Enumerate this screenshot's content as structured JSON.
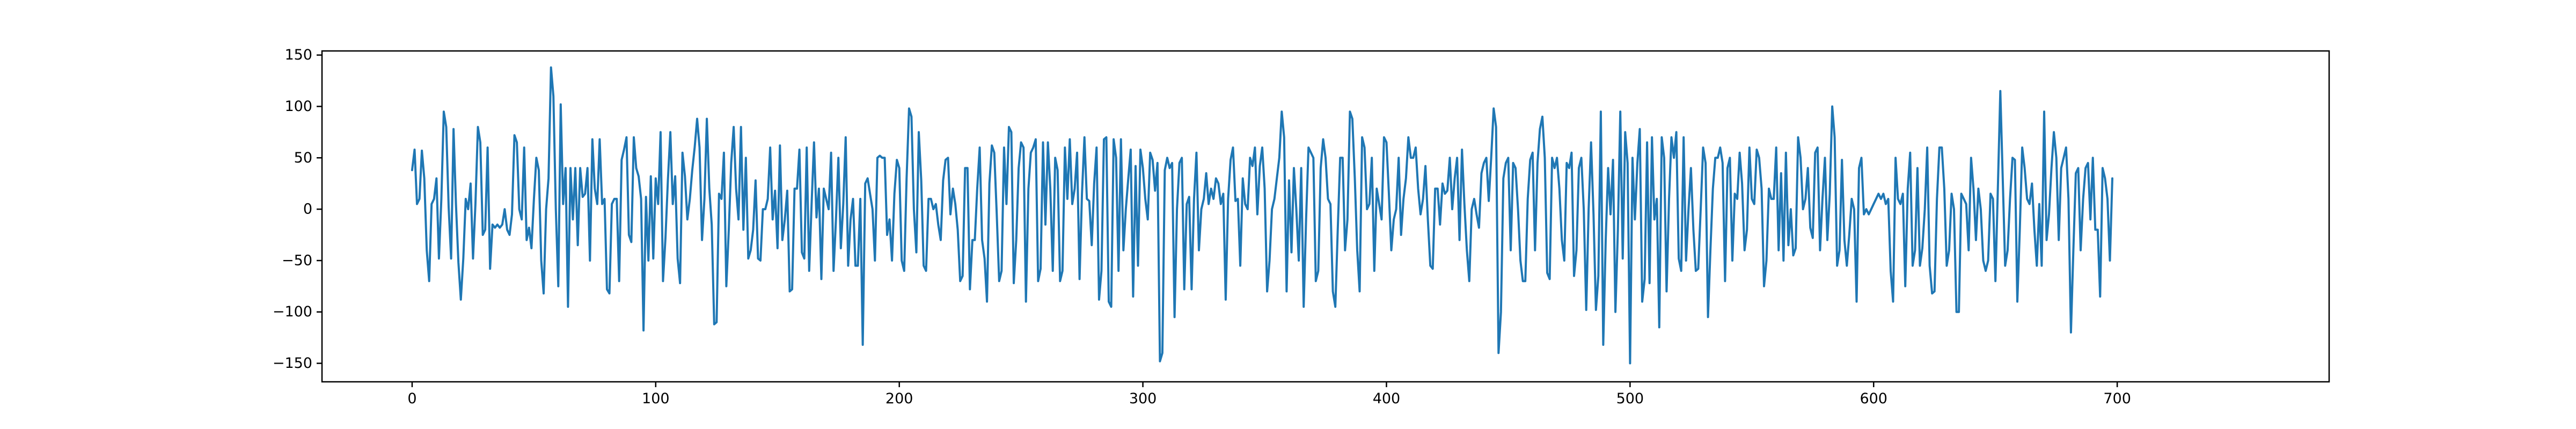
{
  "chart_data": {
    "type": "line",
    "title": "",
    "xlabel": "",
    "ylabel": "",
    "xlim": [
      -37,
      787
    ],
    "ylim": [
      -168,
      154
    ],
    "x_ticks": [
      0,
      100,
      200,
      300,
      400,
      500,
      600,
      700
    ],
    "y_ticks": [
      -150,
      -100,
      -50,
      0,
      50,
      100,
      150
    ],
    "x_tick_labels": [
      "0",
      "100",
      "200",
      "300",
      "400",
      "500",
      "600",
      "700"
    ],
    "y_tick_labels": [
      "−150",
      "−100",
      "−50",
      "0",
      "50",
      "100",
      "150"
    ],
    "grid": false,
    "legend": "none",
    "series": [
      {
        "color": "#1f77b4",
        "x_start": 0,
        "x_step": 1,
        "values": [
          38,
          58,
          5,
          10,
          57,
          30,
          -40,
          -70,
          5,
          10,
          30,
          -48,
          10,
          95,
          80,
          2,
          -48,
          78,
          5,
          -52,
          -88,
          -48,
          10,
          0,
          25,
          -48,
          5,
          80,
          65,
          -25,
          -20,
          60,
          -58,
          -15,
          -18,
          -15,
          -18,
          -15,
          0,
          -20,
          -25,
          -5,
          72,
          65,
          0,
          -10,
          60,
          -30,
          -18,
          -38,
          10,
          50,
          38,
          -50,
          -82,
          0,
          30,
          138,
          110,
          0,
          -75,
          102,
          5,
          40,
          -95,
          40,
          -10,
          40,
          -35,
          40,
          12,
          15,
          40,
          -50,
          68,
          20,
          5,
          68,
          5,
          10,
          -78,
          -82,
          5,
          10,
          10,
          -70,
          48,
          58,
          70,
          -25,
          -32,
          70,
          40,
          32,
          10,
          -118,
          12,
          -50,
          32,
          -48,
          30,
          5,
          75,
          -70,
          -28,
          28,
          75,
          5,
          32,
          -48,
          -72,
          55,
          32,
          -10,
          10,
          38,
          60,
          88,
          60,
          -30,
          10,
          88,
          20,
          -15,
          -112,
          -110,
          15,
          10,
          55,
          -75,
          -20,
          45,
          80,
          20,
          -10,
          80,
          -20,
          50,
          -48,
          -40,
          -20,
          28,
          -48,
          -50,
          0,
          0,
          10,
          60,
          -10,
          18,
          -38,
          62,
          -30,
          -10,
          18,
          -80,
          -78,
          20,
          20,
          58,
          -42,
          -48,
          60,
          -60,
          5,
          65,
          -8,
          20,
          -68,
          20,
          10,
          0,
          55,
          -60,
          -10,
          50,
          -38,
          5,
          70,
          -55,
          -10,
          10,
          -55,
          -55,
          10,
          -132,
          25,
          30,
          15,
          0,
          -50,
          50,
          52,
          50,
          50,
          -25,
          -10,
          -50,
          15,
          48,
          40,
          -50,
          -60,
          30,
          98,
          90,
          0,
          -42,
          75,
          28,
          -55,
          -60,
          10,
          10,
          0,
          5,
          -15,
          -30,
          28,
          48,
          50,
          -5,
          20,
          5,
          -20,
          -70,
          -65,
          40,
          40,
          -78,
          -30,
          -30,
          20,
          60,
          -30,
          -48,
          -90,
          25,
          62,
          55,
          -5,
          -70,
          -60,
          60,
          5,
          80,
          75,
          -72,
          -30,
          40,
          65,
          60,
          -90,
          20,
          55,
          60,
          68,
          -70,
          -58,
          65,
          -15,
          65,
          20,
          -60,
          50,
          38,
          -70,
          -60,
          60,
          10,
          68,
          5,
          20,
          55,
          -68,
          15,
          70,
          10,
          8,
          -35,
          25,
          60,
          -88,
          -60,
          68,
          70,
          -90,
          -95,
          68,
          50,
          -60,
          68,
          -40,
          0,
          30,
          58,
          -85,
          42,
          -55,
          58,
          40,
          10,
          -10,
          55,
          48,
          18,
          45,
          -148,
          -140,
          38,
          50,
          40,
          45,
          -105,
          0,
          45,
          50,
          -78,
          5,
          12,
          -78,
          10,
          55,
          -40,
          0,
          10,
          35,
          5,
          20,
          10,
          30,
          25,
          5,
          15,
          -88,
          10,
          48,
          60,
          8,
          10,
          -55,
          30,
          5,
          0,
          50,
          42,
          60,
          -5,
          42,
          60,
          20,
          -80,
          -50,
          0,
          10,
          30,
          50,
          95,
          70,
          -80,
          28,
          -42,
          40,
          0,
          -50,
          40,
          -95,
          -10,
          60,
          55,
          50,
          -70,
          -60,
          40,
          68,
          50,
          10,
          5,
          -80,
          -95,
          -20,
          50,
          50,
          -40,
          -10,
          95,
          88,
          30,
          -40,
          -80,
          70,
          60,
          0,
          5,
          50,
          -60,
          20,
          5,
          -10,
          70,
          65,
          15,
          -40,
          -10,
          0,
          50,
          -25,
          10,
          30,
          70,
          50,
          50,
          60,
          20,
          -5,
          10,
          42,
          -10,
          -55,
          -58,
          20,
          20,
          -15,
          25,
          15,
          18,
          50,
          0,
          30,
          50,
          -30,
          58,
          5,
          -40,
          -70,
          0,
          10,
          -5,
          -18,
          35,
          45,
          50,
          8,
          50,
          98,
          80,
          -140,
          -100,
          30,
          45,
          50,
          -40,
          45,
          40,
          0,
          -50,
          -70,
          -70,
          10,
          48,
          55,
          -40,
          45,
          78,
          90,
          50,
          -62,
          -68,
          50,
          40,
          50,
          20,
          -30,
          -50,
          45,
          40,
          55,
          -65,
          -40,
          40,
          50,
          0,
          -98,
          0,
          65,
          -5,
          -98,
          -65,
          95,
          -132,
          -30,
          40,
          -5,
          48,
          -100,
          -20,
          95,
          -48,
          75,
          45,
          -150,
          50,
          -10,
          45,
          78,
          -90,
          -68,
          65,
          -72,
          70,
          -10,
          10,
          -115,
          70,
          50,
          -80,
          10,
          70,
          50,
          75,
          -48,
          -60,
          70,
          -50,
          0,
          40,
          -20,
          -60,
          -58,
          0,
          60,
          45,
          -105,
          -40,
          20,
          50,
          50,
          60,
          45,
          -70,
          40,
          50,
          -50,
          15,
          10,
          55,
          25,
          -40,
          -20,
          60,
          10,
          5,
          58,
          50,
          20,
          -75,
          -50,
          20,
          10,
          10,
          60,
          -40,
          35,
          -50,
          55,
          -35,
          0,
          -45,
          -38,
          70,
          50,
          0,
          10,
          40,
          -18,
          -28,
          55,
          60,
          -40,
          10,
          50,
          -30,
          15,
          100,
          70,
          -55,
          -40,
          48,
          -30,
          -55,
          -25,
          10,
          0,
          -90,
          40,
          50,
          -5,
          0,
          -5,
          0,
          5,
          10,
          15,
          10,
          15,
          5,
          10,
          -60,
          -90,
          50,
          10,
          5,
          15,
          -75,
          20,
          55,
          -55,
          -40,
          40,
          -55,
          -38,
          0,
          60,
          -55,
          -82,
          -80,
          10,
          60,
          60,
          20,
          -55,
          -40,
          15,
          0,
          -100,
          -100,
          15,
          10,
          5,
          -40,
          50,
          20,
          -30,
          20,
          0,
          -50,
          -60,
          -50,
          15,
          10,
          -70,
          20,
          115,
          30,
          -55,
          -40,
          10,
          50,
          48,
          -90,
          -20,
          60,
          40,
          10,
          5,
          25,
          -20,
          -55,
          5,
          -55,
          95,
          -30,
          -5,
          40,
          75,
          50,
          -30,
          40,
          50,
          60,
          10,
          -120,
          -40,
          35,
          40,
          -40,
          10,
          40,
          45,
          -10,
          50,
          -20,
          -20,
          -85,
          40,
          30,
          10,
          -50,
          30
        ]
      }
    ]
  }
}
